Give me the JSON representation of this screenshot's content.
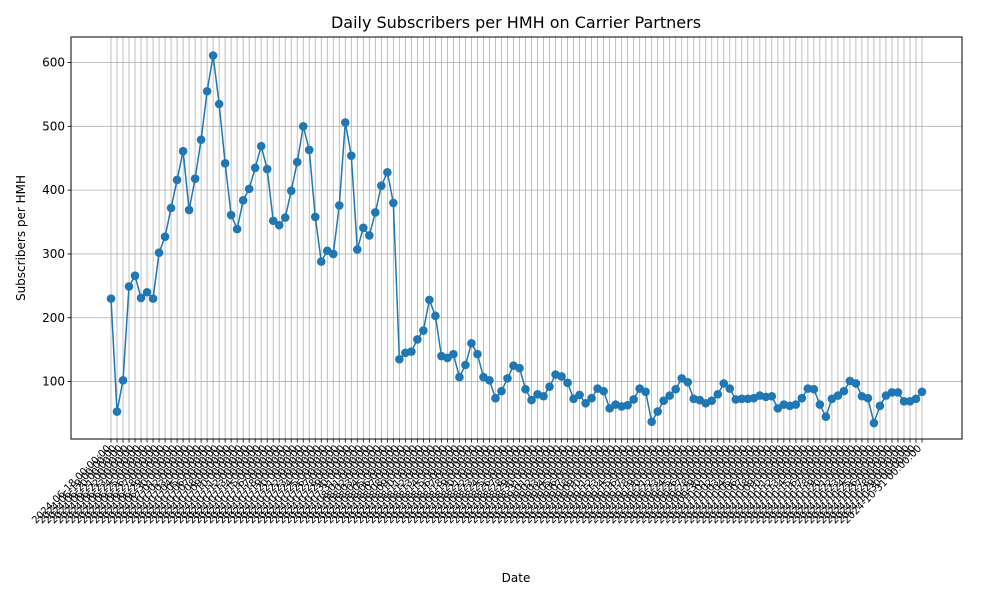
{
  "chart_data": {
    "type": "line",
    "title": "Daily Subscribers per HMH on Carrier Partners",
    "xlabel": "Date",
    "ylabel": "Subscribers per HMH",
    "y_ticks": [
      100,
      200,
      300,
      400,
      500,
      600
    ],
    "ylim": [
      10,
      640
    ],
    "grid": true,
    "legend": "none",
    "series_color": "#1f77b4",
    "x_dates": [
      "2024-06-18",
      "2024-06-19",
      "2024-06-20",
      "2024-06-21",
      "2024-06-22",
      "2024-06-23",
      "2024-06-24",
      "2024-06-25",
      "2024-06-26",
      "2024-06-27",
      "2024-06-28",
      "2024-06-29",
      "2024-06-30",
      "2024-07-01",
      "2024-07-02",
      "2024-07-03",
      "2024-07-04",
      "2024-07-05",
      "2024-07-06",
      "2024-07-07",
      "2024-07-08",
      "2024-07-09",
      "2024-07-10",
      "2024-07-11",
      "2024-07-12",
      "2024-07-13",
      "2024-07-14",
      "2024-07-15",
      "2024-07-16",
      "2024-07-17",
      "2024-07-18",
      "2024-07-19",
      "2024-07-20",
      "2024-07-21",
      "2024-07-22",
      "2024-07-23",
      "2024-07-24",
      "2024-07-25",
      "2024-07-26",
      "2024-07-27",
      "2024-07-28",
      "2024-07-29",
      "2024-07-30",
      "2024-07-31",
      "2024-08-01",
      "2024-08-02",
      "2024-08-03",
      "2024-08-04",
      "2024-08-05",
      "2024-08-06",
      "2024-08-07",
      "2024-08-08",
      "2024-08-09",
      "2024-08-10",
      "2024-08-11",
      "2024-08-12",
      "2024-08-13",
      "2024-08-14",
      "2024-08-15",
      "2024-08-16",
      "2024-08-17",
      "2024-08-18",
      "2024-08-19",
      "2024-08-20",
      "2024-08-21",
      "2024-08-22",
      "2024-08-23",
      "2024-08-24",
      "2024-08-25",
      "2024-08-26",
      "2024-08-27",
      "2024-08-28",
      "2024-08-29",
      "2024-08-30",
      "2024-08-31",
      "2024-09-01",
      "2024-09-02",
      "2024-09-03",
      "2024-09-04",
      "2024-09-05",
      "2024-09-06",
      "2024-09-07",
      "2024-09-08",
      "2024-09-09",
      "2024-09-10",
      "2024-09-11",
      "2024-09-12",
      "2024-09-13",
      "2024-09-14",
      "2024-09-15",
      "2024-09-16",
      "2024-09-17",
      "2024-09-18",
      "2024-09-19",
      "2024-09-20",
      "2024-09-21",
      "2024-09-22",
      "2024-09-23",
      "2024-09-24",
      "2024-09-25",
      "2024-09-26",
      "2024-09-27",
      "2024-09-28",
      "2024-09-29",
      "2024-09-30",
      "2024-10-01",
      "2024-10-02",
      "2024-10-03",
      "2024-10-04",
      "2024-10-05",
      "2024-10-06",
      "2024-10-07",
      "2024-10-08",
      "2024-10-09",
      "2024-10-10",
      "2024-10-11",
      "2024-10-12",
      "2024-10-13",
      "2024-10-14",
      "2024-10-15",
      "2024-10-16",
      "2024-10-17",
      "2024-10-18",
      "2024-10-19",
      "2024-10-20",
      "2024-10-21",
      "2024-10-22",
      "2024-10-23",
      "2024-10-24",
      "2024-10-25",
      "2024-10-26",
      "2024-10-27",
      "2024-10-28",
      "2024-10-29",
      "2024-10-30",
      "2024-10-31"
    ],
    "x_tick_suffix": " 00:00:00",
    "values": [
      230,
      53,
      102,
      249,
      266,
      231,
      240,
      230,
      302,
      327,
      372,
      416,
      461,
      369,
      418,
      479,
      555,
      611,
      535,
      442,
      361,
      339,
      384,
      402,
      435,
      469,
      433,
      352,
      345,
      357,
      399,
      444,
      500,
      463,
      358,
      288,
      305,
      300,
      376,
      506,
      454,
      307,
      341,
      329,
      365,
      407,
      428,
      380,
      135,
      145,
      147,
      166,
      180,
      228,
      203,
      140,
      137,
      143,
      107,
      126,
      160,
      143,
      107,
      102,
      74,
      85,
      105,
      125,
      121,
      88,
      71,
      80,
      77,
      92,
      111,
      108,
      98,
      73,
      79,
      66,
      74,
      89,
      85,
      58,
      64,
      61,
      63,
      72,
      89,
      84,
      37,
      53,
      70,
      78,
      88,
      105,
      99,
      73,
      71,
      66,
      70,
      80,
      97,
      89,
      72,
      73,
      73,
      74,
      78,
      76,
      77,
      58,
      64,
      62,
      64,
      74,
      89,
      88,
      64,
      45,
      73,
      78,
      85,
      101,
      97,
      77,
      74,
      35,
      62,
      78,
      83,
      83,
      69,
      69,
      73,
      84
    ]
  }
}
